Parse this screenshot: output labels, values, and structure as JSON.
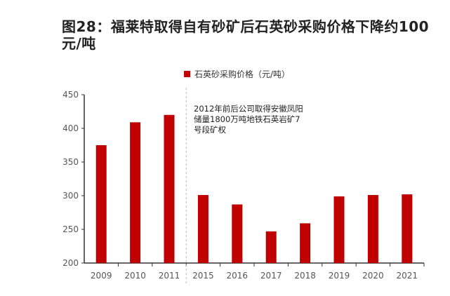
{
  "title": "图28：福莱特取得自有砂矿后石英砂采购价格下降约100 元/吨",
  "annotation": "2012年前后公司取得安徽凤阳储量1800万吨地铁石英岩矿7号段矿权",
  "chart_data": {
    "type": "bar",
    "categories": [
      "2009",
      "2010",
      "2011",
      "2015",
      "2016",
      "2017",
      "2018",
      "2019",
      "2020",
      "2021"
    ],
    "series": [
      {
        "name": "石英砂采购价格（元/吨）",
        "values": [
          375,
          409,
          420,
          301,
          287,
          247,
          259,
          299,
          301,
          302
        ],
        "color": "#c00000"
      }
    ],
    "ylim": [
      200,
      450
    ],
    "yticks": [
      200,
      250,
      300,
      350,
      400,
      450
    ],
    "grid": false,
    "legend": "top",
    "divider_after": "2011"
  }
}
